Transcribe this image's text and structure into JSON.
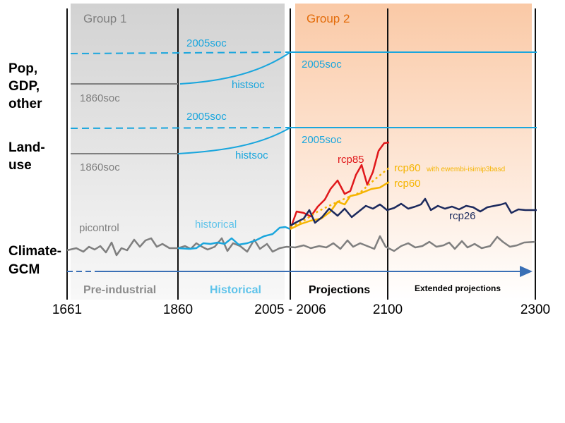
{
  "groups": {
    "group1": "Group 1",
    "group2": "Group 2"
  },
  "row_labels": {
    "pop_line1": "Pop,",
    "pop_line2": "GDP,",
    "pop_line3": "other",
    "land_line1": "Land-",
    "land_line2": "use",
    "climate_line1": "Climate-",
    "climate_line2": "GCM"
  },
  "scenario_labels": {
    "pop_2005soc_preind": "2005soc",
    "pop_2005soc_future": "2005soc",
    "pop_histsoc": "histsoc",
    "pop_1860soc": "1860soc",
    "land_2005soc_preind": "2005soc",
    "land_2005soc_future": "2005soc",
    "land_histsoc": "histsoc",
    "land_1860soc": "1860soc",
    "picontrol": "picontrol",
    "historical": "historical",
    "rcp85": "rcp85",
    "rcp60_ewembi": "rcp60",
    "rcp60_ewembi_note": "with ewembi-isimip3basd",
    "rcp60": "rcp60",
    "rcp26": "rcp26"
  },
  "periods": {
    "preindustrial": "Pre-industrial",
    "historical": "Historical",
    "projections": "Projections",
    "extended": "Extended projections"
  },
  "years": {
    "y1661": "1661",
    "y1860": "1860",
    "y2005_2006": "2005 - 2006",
    "y2100": "2100",
    "y2300": "2300"
  },
  "colors": {
    "cyan": "#1aa6dd",
    "gray": "#7f7f7f",
    "red": "#e0181b",
    "yellow": "#f5b400",
    "navy": "#1c2a5e",
    "orange_text": "#e36c0a",
    "arrow_blue": "#3a6fb5"
  }
}
